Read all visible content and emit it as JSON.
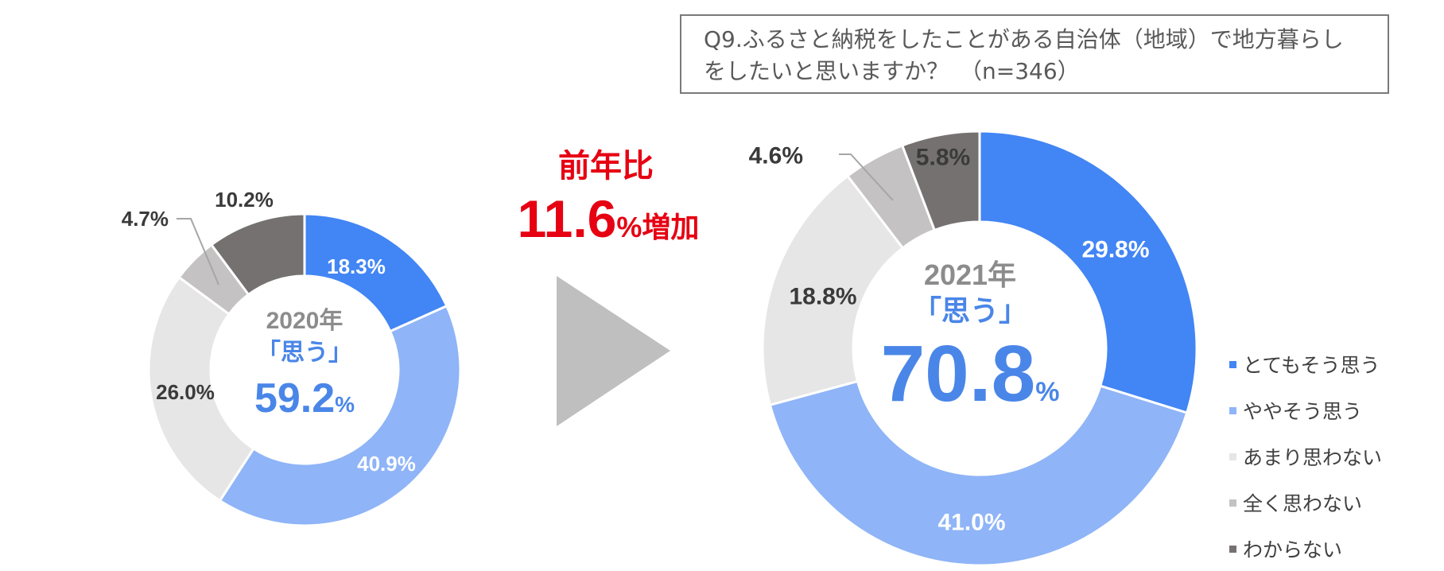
{
  "question": "Q9.ふるさと納税をしたことがある自治体（地域）で地方暮らしをしたいと思いますか？　（n=346）",
  "colors": {
    "とてもそう思う": "#4285f4",
    "ややそう思う": "#8fb4f7",
    "あまり思わない": "#e6e6e6",
    "全く思わない": "#c4c2c2",
    "わからない": "#767171",
    "growth": "#e60012",
    "center_year": "#8c8c8c",
    "center_value": "#4a86e8",
    "arrow": "#c0bfbf"
  },
  "growth": {
    "heading": "前年比",
    "value": "11.6",
    "unit": "%増加"
  },
  "legend_items": [
    "とてもそう思う",
    "ややそう思う",
    "あまり思わない",
    "全く思わない",
    "わからない"
  ],
  "chart_data": [
    {
      "type": "pie",
      "year_label": "2020年",
      "center_caption": "「思う」",
      "center_value": "59.2",
      "center_unit": "%",
      "slices": [
        {
          "name": "とてもそう思う",
          "value": 18.3,
          "label": "18.3%"
        },
        {
          "name": "ややそう思う",
          "value": 40.9,
          "label": "40.9%"
        },
        {
          "name": "あまり思わない",
          "value": 26.0,
          "label": "26.0%"
        },
        {
          "name": "全く思わない",
          "value": 4.7,
          "label": "4.7%"
        },
        {
          "name": "わからない",
          "value": 10.2,
          "label": "10.2%"
        }
      ]
    },
    {
      "type": "pie",
      "year_label": "2021年",
      "center_caption": "「思う」",
      "center_value": "70.8",
      "center_unit": "%",
      "slices": [
        {
          "name": "とてもそう思う",
          "value": 29.8,
          "label": "29.8%"
        },
        {
          "name": "ややそう思う",
          "value": 41.0,
          "label": "41.0%"
        },
        {
          "name": "あまり思わない",
          "value": 18.8,
          "label": "18.8%"
        },
        {
          "name": "全く思わない",
          "value": 4.6,
          "label": "4.6%"
        },
        {
          "name": "わからない",
          "value": 5.8,
          "label": "5.8%"
        }
      ]
    }
  ]
}
